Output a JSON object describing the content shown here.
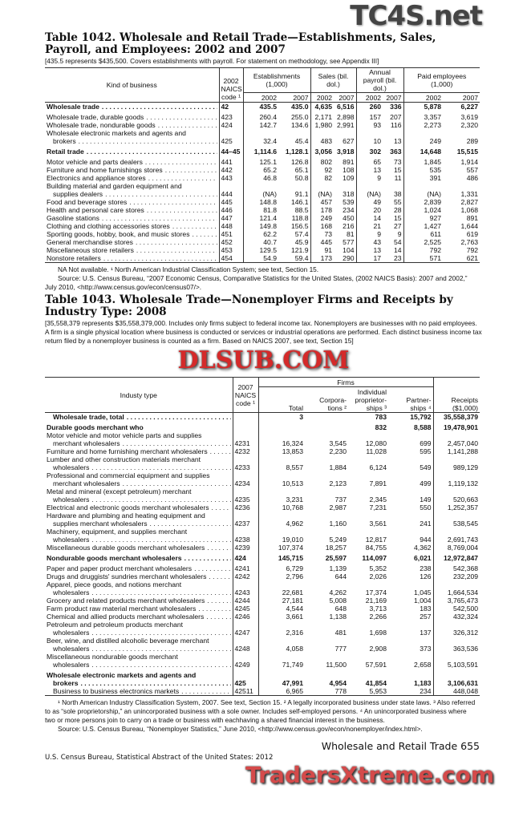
{
  "t1042": {
    "title": "Table 1042. Wholesale and Retail Trade—Establishments, Sales, Payroll, and Employees: 2002 and 2007",
    "note": "[435.5 represents $435,500. Covers establishments with payroll. For statement on methodology, see Appendix III]",
    "headers": {
      "kind": "Kind of business",
      "code": "2002 NAICS",
      "code2": "code ¹",
      "est": "Establishments (1,000)",
      "sales": "Sales (bil. dol.)",
      "payroll": "Annual payroll (bil. dol.)",
      "emp": "Paid employees (1,000)",
      "y1": "2002",
      "y2": "2007"
    },
    "rows": [
      {
        "label": "Wholesale trade",
        "code": "42",
        "v": [
          "435.5",
          "435.0",
          "4,635",
          "6,516",
          "260",
          "336",
          "5,878",
          "6,227"
        ],
        "bold": true
      },
      {
        "label": "Wholesale trade, durable goods",
        "code": "423",
        "v": [
          "260.4",
          "255.0",
          "2,171",
          "2,898",
          "157",
          "207",
          "3,357",
          "3,619"
        ],
        "gap": true
      },
      {
        "label": "Wholesale trade, nondurable goods",
        "code": "424",
        "v": [
          "142.7",
          "134.6",
          "1,980",
          "2,991",
          "93",
          "116",
          "2,273",
          "2,320"
        ]
      },
      {
        "pre": "Wholesale electronic markets and agents and",
        "label": "brokers",
        "code": "425",
        "v": [
          "32.4",
          "45.4",
          "483",
          "627",
          "10",
          "13",
          "249",
          "289"
        ]
      },
      {
        "label": "Retail trade",
        "code": "44–45",
        "v": [
          "1,114.6",
          "1,128.1",
          "3,056",
          "3,918",
          "302",
          "363",
          "14,648",
          "15,515"
        ],
        "bold": true,
        "gap": true
      },
      {
        "label": "Motor vehicle and parts dealers",
        "code": "441",
        "v": [
          "125.1",
          "126.8",
          "802",
          "891",
          "65",
          "73",
          "1,845",
          "1,914"
        ],
        "gap": true
      },
      {
        "label": "Furniture and home furnishings stores",
        "code": "442",
        "v": [
          "65.2",
          "65.1",
          "92",
          "108",
          "13",
          "15",
          "535",
          "557"
        ]
      },
      {
        "label": "Electronics and appliance stores",
        "code": "443",
        "v": [
          "46.8",
          "50.8",
          "82",
          "109",
          "9",
          "11",
          "391",
          "486"
        ]
      },
      {
        "pre": "Building material and garden equipment and",
        "label": "supplies dealers",
        "code": "444",
        "v": [
          "(NA)",
          "91.1",
          "(NA)",
          "318",
          "(NA)",
          "38",
          "(NA)",
          "1,331"
        ]
      },
      {
        "label": "Food and beverage stores",
        "code": "445",
        "v": [
          "148.8",
          "146.1",
          "457",
          "539",
          "49",
          "55",
          "2,839",
          "2,827"
        ]
      },
      {
        "label": "Health and personal care stores",
        "code": "446",
        "v": [
          "81.8",
          "88.5",
          "178",
          "234",
          "20",
          "28",
          "1,024",
          "1,068"
        ]
      },
      {
        "label": "Gasoline stations",
        "code": "447",
        "v": [
          "121.4",
          "118.8",
          "249",
          "450",
          "14",
          "15",
          "927",
          "891"
        ]
      },
      {
        "label": "Clothing and clothing accessories stores",
        "code": "448",
        "v": [
          "149.8",
          "156.5",
          "168",
          "216",
          "21",
          "27",
          "1,427",
          "1,644"
        ]
      },
      {
        "label": "Sporting goods, hobby, book, and music stores",
        "code": "451",
        "v": [
          "62.2",
          "57.4",
          "73",
          "81",
          "9",
          "9",
          "611",
          "619"
        ]
      },
      {
        "label": "General merchandise stores",
        "code": "452",
        "v": [
          "40.7",
          "45.9",
          "445",
          "577",
          "43",
          "54",
          "2,525",
          "2,763"
        ]
      },
      {
        "label": "Miscellaneous store retailers",
        "code": "453",
        "v": [
          "129.5",
          "121.9",
          "91",
          "104",
          "13",
          "14",
          "792",
          "792"
        ]
      },
      {
        "label": "Nonstore retailers",
        "code": "454",
        "v": [
          "54.9",
          "59.4",
          "173",
          "290",
          "17",
          "23",
          "571",
          "621"
        ]
      }
    ],
    "footnote": "NA Not available. ¹ North American Industrial Classification System; see text, Section 15.",
    "source": "Source: U.S. Census Bureau, “2007 Economic Census, Comparative Statistics for the United States, (2002 NAICS Basis): 2007 and 2002,” July 2010, <http://www.census.gov/econ/census07/>."
  },
  "t1043": {
    "title": "Table 1043. Wholesale Trade—Nonemployer Firms and Receipts by Industry Type: 2008",
    "note": "[35,558,379 represents $35,558,379,000. Includes only firms subject to federal income tax. Nonemployers are businesses with no paid employees. A firm is a single physical location where business is conducted or services or industrial operations are performed. Each distinct business income tax return filed by a nonemployer business is counted as a firm. Based on NAICS 2007, see text, Section 15]",
    "headers": {
      "industry": "Industy type",
      "code": "2007 NAICS code ¹",
      "firms": "Firms",
      "total": "Total",
      "corp": "Corpora- tions ²",
      "indiv": "Individual proprietor- ships ³",
      "partner": "Partner- ships ⁴",
      "receipts": "Receipts ($1,000)"
    },
    "rows": [
      {
        "label": "Wholesale trade, total",
        "code": "",
        "v": [
          "3",
          "",
          "783",
          "15,792",
          "35,558,379"
        ],
        "bold": true,
        "ind": true
      },
      {
        "label": "Durable goods merchant who",
        "code": "",
        "v": [
          "",
          "",
          "832",
          "8,588",
          "19,478,901"
        ],
        "bold": true,
        "gap": true,
        "nodots": true
      },
      {
        "pre": "Motor vehicle and motor vehicle parts and supplies",
        "label": "merchant wholesalers",
        "code": "4231",
        "v": [
          "16,324",
          "3,545",
          "12,080",
          "699",
          "2,457,040"
        ]
      },
      {
        "label": "Furniture and home furnishing merchant wholesalers",
        "code": "4232",
        "v": [
          "13,853",
          "2,230",
          "11,028",
          "595",
          "1,141,288"
        ]
      },
      {
        "pre": "Lumber and other construction materials merchant",
        "label": "wholesalers",
        "code": "4233",
        "v": [
          "8,557",
          "1,884",
          "6,124",
          "549",
          "989,129"
        ]
      },
      {
        "pre": "Professional and commercial equipment and supplies",
        "label": "merchant wholesalers",
        "code": "4234",
        "v": [
          "10,513",
          "2,123",
          "7,891",
          "499",
          "1,119,132"
        ]
      },
      {
        "pre": "Metal and mineral (except petroleum) merchant",
        "label": "wholesalers",
        "code": "4235",
        "v": [
          "3,231",
          "737",
          "2,345",
          "149",
          "520,663"
        ]
      },
      {
        "label": "Electrical and electronic goods merchant wholesalers",
        "code": "4236",
        "v": [
          "10,768",
          "2,987",
          "7,231",
          "550",
          "1,252,357"
        ]
      },
      {
        "pre": "Hardware and plumbing and heating equipment and",
        "label": "supplies merchant wholesalers",
        "code": "4237",
        "v": [
          "4,962",
          "1,160",
          "3,561",
          "241",
          "538,545"
        ]
      },
      {
        "pre": "Machinery, equipment, and supplies merchant",
        "label": "wholesalers",
        "code": "4238",
        "v": [
          "19,010",
          "5,249",
          "12,817",
          "944",
          "2,691,743"
        ]
      },
      {
        "label": "Miscellaneous durable goods merchant wholesalers",
        "code": "4239",
        "v": [
          "107,374",
          "18,257",
          "84,755",
          "4,362",
          "8,769,004"
        ]
      },
      {
        "label": "Nondurable goods merchant wholesalers",
        "code": "424",
        "v": [
          "145,715",
          "25,597",
          "114,097",
          "6,021",
          "12,972,847"
        ],
        "bold": true,
        "gap": true
      },
      {
        "label": "Paper and paper product merchant wholesalers",
        "code": "4241",
        "v": [
          "6,729",
          "1,139",
          "5,352",
          "238",
          "542,368"
        ],
        "gap": true
      },
      {
        "label": "Drugs and druggists' sundries merchant wholesalers",
        "code": "4242",
        "v": [
          "2,796",
          "644",
          "2,026",
          "126",
          "232,209"
        ]
      },
      {
        "pre": "Apparel, piece goods, and notions merchant",
        "label": "wholesalers",
        "code": "4243",
        "v": [
          "22,681",
          "4,262",
          "17,374",
          "1,045",
          "1,664,534"
        ]
      },
      {
        "label": "Grocery and related products merchant wholesalers",
        "code": "4244",
        "v": [
          "27,181",
          "5,008",
          "21,169",
          "1,004",
          "3,765,473"
        ]
      },
      {
        "label": "Farm product raw material merchant wholesalers",
        "code": "4245",
        "v": [
          "4,544",
          "648",
          "3,713",
          "183",
          "542,500"
        ]
      },
      {
        "label": "Chemical and allied products merchant wholesalers",
        "code": "4246",
        "v": [
          "3,661",
          "1,138",
          "2,266",
          "257",
          "432,324"
        ]
      },
      {
        "pre": "Petroleum and petroleum products merchant",
        "label": "wholesalers",
        "code": "4247",
        "v": [
          "2,316",
          "481",
          "1,698",
          "137",
          "326,312"
        ]
      },
      {
        "pre": "Beer, wine, and distilled alcoholic beverage merchant",
        "label": "wholesalers",
        "code": "4248",
        "v": [
          "4,058",
          "777",
          "2,908",
          "373",
          "363,536"
        ]
      },
      {
        "pre": "Miscellaneous nondurable goods merchant",
        "label": "wholesalers",
        "code": "4249",
        "v": [
          "71,749",
          "11,500",
          "57,591",
          "2,658",
          "5,103,591"
        ]
      },
      {
        "pre": "Wholesale electronic markets and agents and",
        "label": "brokers",
        "code": "425",
        "v": [
          "47,991",
          "4,954",
          "41,854",
          "1,183",
          "3,106,631"
        ],
        "bold": true,
        "gap": true
      },
      {
        "label": "Business to business electronics markets",
        "code": "42511",
        "v": [
          "6,965",
          "778",
          "5,953",
          "234",
          "448,048"
        ],
        "ind": true
      }
    ],
    "footnote": "¹ North American Industry Classification System, 2007. See text, Section 15. ² A legally incorporated business under state laws. ³ Also referred to as “sole proprietorship,” an unincorporated business with a sole owner. Includes self-employed persons. ⁴ An unincorporated business where two or more persons join to carry on a trade or business with eachhaving a shared financial interest in the business.",
    "source": "Source: U.S. Census Bureau, “Nonemployer Statistics,” June 2010, <http://www.census.gov/econ/nonemployer/index.html>."
  },
  "footer": {
    "section": "Wholesale and Retail Trade  655",
    "publication": "U.S. Census Bureau, Statistical Abstract of the United States: 2012"
  },
  "watermarks": {
    "top": "TC4S.net",
    "middle": "DLSUB.COM",
    "bottom": "TradersXtreme.com"
  },
  "colors": {
    "watermark_red": "#d42a2a"
  }
}
